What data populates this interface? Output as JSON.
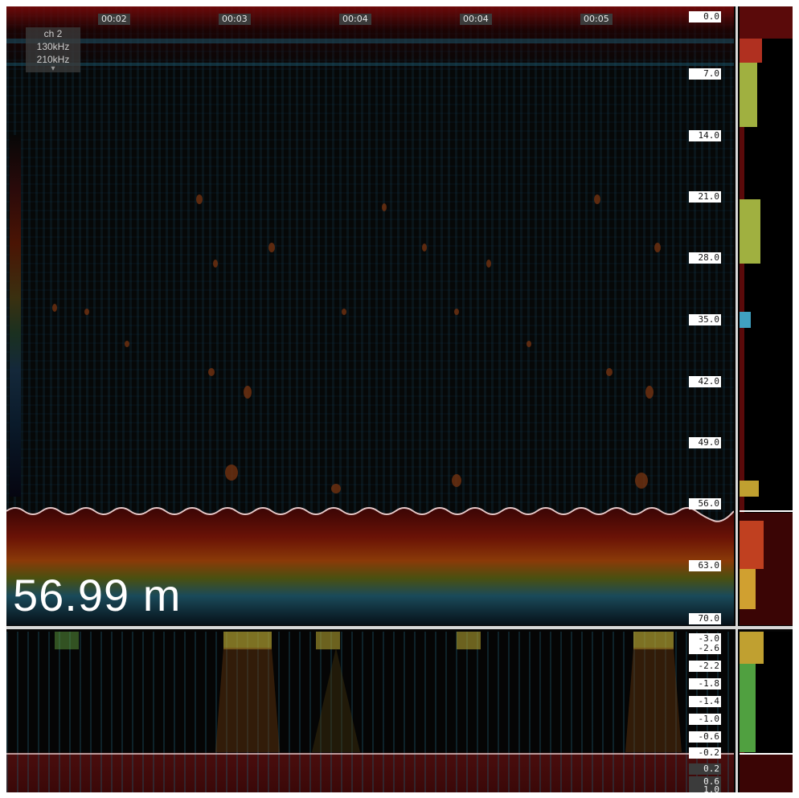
{
  "app": {
    "channel": {
      "label": "ch 2",
      "frequencies": [
        "130kHz",
        "210kHz"
      ]
    }
  },
  "time_axis": {
    "labels": [
      "00:02",
      "00:03",
      "00:04",
      "00:04",
      "00:05"
    ]
  },
  "depth_axis": {
    "main": [
      "0.0",
      "7.0",
      "14.0",
      "21.0",
      "28.0",
      "35.0",
      "42.0",
      "49.0",
      "56.0",
      "63.0",
      "70.0"
    ],
    "zoom": [
      "-3.0",
      "-2.6",
      "-2.2",
      "-1.8",
      "-1.4",
      "-1.0",
      "-0.6",
      "-0.2",
      "0.2",
      "0.6",
      "1.0"
    ]
  },
  "bottom_depth": {
    "value": "56.99 m"
  },
  "colors": {
    "background": "#050505",
    "bottom_line": "#e6c8c8",
    "divider": "#d8d8d8",
    "seabed": "#5a0d0d"
  }
}
